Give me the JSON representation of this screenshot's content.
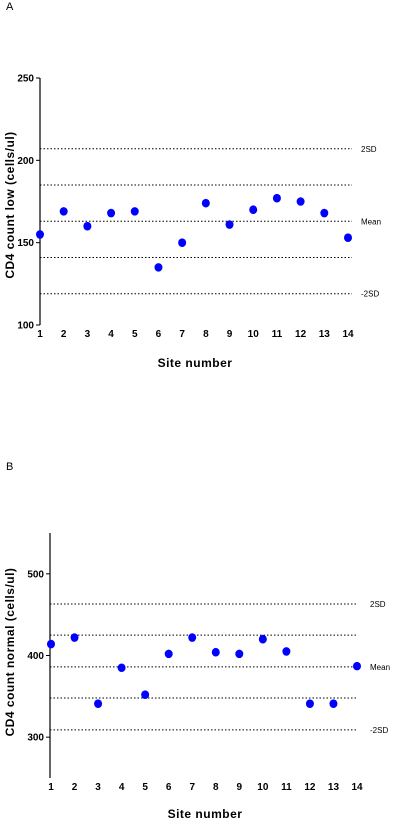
{
  "chart_data": [
    {
      "type": "scatter",
      "panel_label": "A",
      "xlabel": "Site number",
      "ylabel": "CD4 count low (cells/ul)",
      "ylim": [
        100,
        250
      ],
      "yticks": [
        100,
        150,
        200,
        250
      ],
      "xticks": [
        1,
        2,
        3,
        4,
        5,
        6,
        7,
        8,
        9,
        10,
        11,
        12,
        13,
        14
      ],
      "marker_color": "#0000ff",
      "x": [
        1,
        2,
        3,
        4,
        5,
        6,
        7,
        8,
        9,
        10,
        11,
        12,
        13,
        14
      ],
      "values": [
        155,
        169,
        160,
        168,
        169,
        135,
        150,
        174,
        161,
        170,
        177,
        175,
        168,
        153
      ],
      "reference_lines": [
        {
          "label": "2SD",
          "value": 207
        },
        {
          "label": "",
          "value": 185
        },
        {
          "label": "Mean",
          "value": 163
        },
        {
          "label": "",
          "value": 141
        },
        {
          "label": "-2SD",
          "value": 119
        }
      ]
    },
    {
      "type": "scatter",
      "panel_label": "B",
      "xlabel": "Site number",
      "ylabel": "CD4 count normal (cells/ul)",
      "ylim": [
        250,
        550
      ],
      "yticks": [
        300,
        400,
        500
      ],
      "xticks": [
        1,
        2,
        3,
        4,
        5,
        6,
        7,
        8,
        9,
        10,
        11,
        12,
        13,
        14
      ],
      "marker_color": "#0000ff",
      "x": [
        1,
        2,
        3,
        4,
        5,
        6,
        7,
        8,
        9,
        10,
        11,
        12,
        13,
        14
      ],
      "values": [
        414,
        422,
        341,
        385,
        352,
        402,
        422,
        404,
        402,
        420,
        405,
        341,
        341,
        387
      ],
      "reference_lines": [
        {
          "label": "2SD",
          "value": 463
        },
        {
          "label": "",
          "value": 425
        },
        {
          "label": "Mean",
          "value": 386
        },
        {
          "label": "",
          "value": 348
        },
        {
          "label": "-2SD",
          "value": 309
        }
      ]
    }
  ]
}
